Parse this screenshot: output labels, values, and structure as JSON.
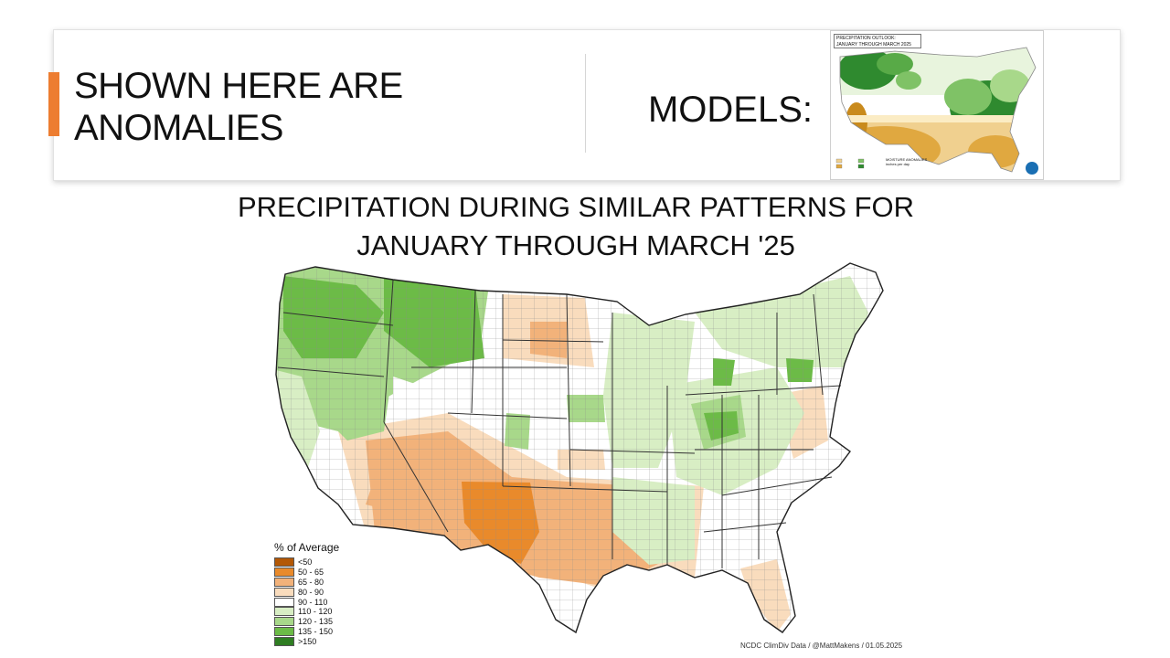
{
  "header": {
    "left_title_line1": "SHOWN HERE ARE",
    "left_title_line2": "ANOMALIES",
    "right_label": "MODELS:"
  },
  "inset_map": {
    "title_line1": "PRECIPITATION OUTLOOK:",
    "title_line2": "JANUARY THROUGH MARCH 2025",
    "legend_title_line1": "MOISTURE ANOMALIES",
    "legend_title_line2": "inches per day"
  },
  "map": {
    "title_line1": "PRECIPITATION DURING SIMILAR PATTERNS FOR",
    "title_line2": "JANUARY THROUGH MARCH '25",
    "credit": "NCDC ClimDiv Data / @MattMakens / 01.05.2025"
  },
  "legend": {
    "title": "% of Average",
    "items": [
      {
        "label": "<50",
        "color": "#b35806"
      },
      {
        "label": "50 - 65",
        "color": "#e98a2b"
      },
      {
        "label": "65 - 80",
        "color": "#f2b27a"
      },
      {
        "label": "80 - 90",
        "color": "#f9dcbd"
      },
      {
        "label": "90 - 110",
        "color": "#ffffff"
      },
      {
        "label": "110 - 120",
        "color": "#d8eec4"
      },
      {
        "label": "120 - 135",
        "color": "#a8d88a"
      },
      {
        "label": "135 - 150",
        "color": "#6cbb47"
      },
      {
        "label": ">150",
        "color": "#2f7d22"
      }
    ]
  },
  "colors": {
    "accent": "#ed7d31"
  }
}
